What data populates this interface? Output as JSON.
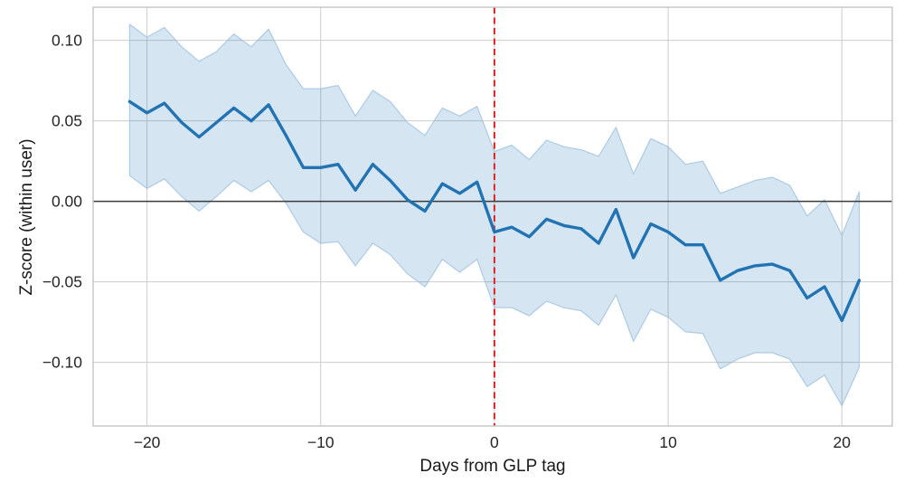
{
  "chart_data": {
    "type": "line",
    "title": "",
    "xlabel": "Days from GLP tag",
    "ylabel": "Z-score (within user)",
    "x": [
      -21,
      -20,
      -19,
      -18,
      -17,
      -16,
      -15,
      -14,
      -13,
      -12,
      -11,
      -10,
      -9,
      -8,
      -7,
      -6,
      -5,
      -4,
      -3,
      -2,
      -1,
      0,
      1,
      2,
      3,
      4,
      5,
      6,
      7,
      8,
      9,
      10,
      11,
      12,
      13,
      14,
      15,
      16,
      17,
      18,
      19,
      20,
      21
    ],
    "series": [
      {
        "name": "mean_z_score",
        "values": [
          0.062,
          0.055,
          0.061,
          0.049,
          0.04,
          0.049,
          0.058,
          0.05,
          0.06,
          0.041,
          0.021,
          0.021,
          0.023,
          0.007,
          0.023,
          0.013,
          0.001,
          -0.006,
          0.011,
          0.005,
          0.012,
          -0.019,
          -0.016,
          -0.022,
          -0.011,
          -0.015,
          -0.017,
          -0.026,
          -0.005,
          -0.035,
          -0.014,
          -0.019,
          -0.027,
          -0.027,
          -0.049,
          -0.043,
          -0.04,
          -0.039,
          -0.043,
          -0.06,
          -0.053,
          -0.074,
          -0.049
        ]
      },
      {
        "name": "ci_upper",
        "values": [
          0.11,
          0.102,
          0.108,
          0.096,
          0.087,
          0.093,
          0.104,
          0.096,
          0.107,
          0.085,
          0.07,
          0.07,
          0.072,
          0.053,
          0.069,
          0.062,
          0.049,
          0.041,
          0.058,
          0.053,
          0.059,
          0.031,
          0.035,
          0.026,
          0.038,
          0.034,
          0.032,
          0.028,
          0.046,
          0.017,
          0.039,
          0.034,
          0.023,
          0.025,
          0.005,
          0.009,
          0.013,
          0.015,
          0.01,
          -0.009,
          0.001,
          -0.021,
          0.006
        ]
      },
      {
        "name": "ci_lower",
        "values": [
          0.016,
          0.008,
          0.014,
          0.003,
          -0.006,
          0.003,
          0.013,
          0.006,
          0.013,
          -0.001,
          -0.019,
          -0.026,
          -0.025,
          -0.04,
          -0.026,
          -0.033,
          -0.045,
          -0.053,
          -0.036,
          -0.044,
          -0.036,
          -0.066,
          -0.066,
          -0.071,
          -0.062,
          -0.066,
          -0.068,
          -0.077,
          -0.058,
          -0.087,
          -0.067,
          -0.072,
          -0.081,
          -0.082,
          -0.104,
          -0.098,
          -0.094,
          -0.094,
          -0.098,
          -0.115,
          -0.108,
          -0.127,
          -0.103
        ]
      }
    ],
    "xlim": [
      -23.1,
      22.9
    ],
    "ylim": [
      -0.1395,
      0.1206
    ],
    "x_ticks": {
      "values": [
        -20,
        -10,
        0,
        10,
        20
      ],
      "labels": [
        "−20",
        "−10",
        "0",
        "10",
        "20"
      ]
    },
    "y_ticks": {
      "values": [
        0.1,
        0.05,
        0.0,
        -0.05,
        -0.1
      ],
      "labels": [
        "0.10",
        "0.05",
        "0.00",
        "−0.05",
        "−0.10"
      ]
    },
    "grid": true,
    "legend": false,
    "annotations": [
      {
        "type": "vline",
        "x": 0,
        "style": "dashed",
        "color": "#e22222"
      },
      {
        "type": "hline",
        "y": 0,
        "style": "solid",
        "color": "#3a3a3a"
      }
    ],
    "colors": {
      "line": "#2173b4",
      "band": "#1f77b4",
      "band_opacity": 0.19,
      "band_edge": "#9dc2de",
      "grid": "#cccccc",
      "border": "#c4c4c4",
      "tick_text": "#262626"
    }
  }
}
